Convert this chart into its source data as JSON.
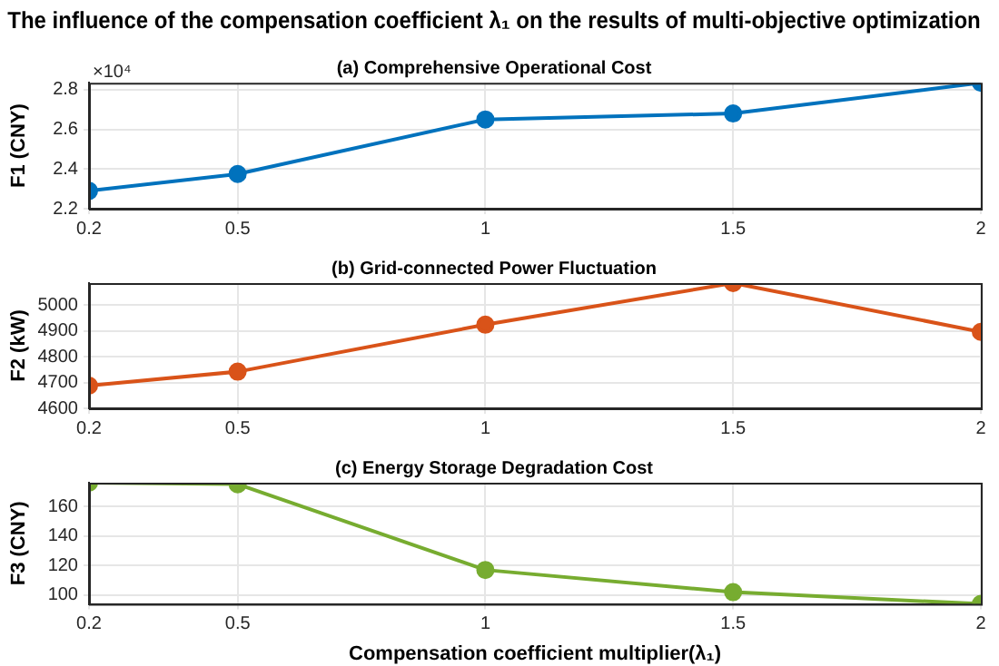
{
  "chart_data": [
    {
      "type": "line",
      "title": "The influence of the compensation coefficient λ₁ on the results of multi-objective optimization",
      "subtitle": "(a) Comprehensive Operational Cost",
      "ylabel": "F1 (CNY)",
      "annotations": [
        "×10⁴"
      ],
      "x": [
        0.2,
        0.5,
        1,
        1.5,
        2
      ],
      "xlim": [
        0.2,
        2
      ],
      "xticks": [
        0.2,
        0.5,
        1,
        1.5,
        2
      ],
      "ylim": [
        2.2,
        2.835
      ],
      "yticks": [
        2.2,
        2.4,
        2.6,
        2.8
      ],
      "series": [
        {
          "color": "#0072bd",
          "values": [
            2.29,
            2.375,
            2.65,
            2.68,
            2.835
          ]
        }
      ],
      "grid": true,
      "marker": "circle",
      "line_style": "solid",
      "legend": false
    },
    {
      "type": "line",
      "subtitle": "(b) Grid-connected Power Fluctuation",
      "ylabel": "F2 (kW)",
      "x": [
        0.2,
        0.5,
        1,
        1.5,
        2
      ],
      "xlim": [
        0.2,
        2
      ],
      "xticks": [
        0.2,
        0.5,
        1,
        1.5,
        2
      ],
      "ylim": [
        4600,
        5085
      ],
      "yticks": [
        4600,
        4700,
        4800,
        4900,
        5000
      ],
      "series": [
        {
          "color": "#d95319",
          "values": [
            4688,
            4742,
            4924,
            5085,
            4896
          ]
        }
      ],
      "grid": true,
      "marker": "circle",
      "line_style": "solid",
      "legend": false
    },
    {
      "type": "line",
      "subtitle": "(c) Energy Storage Degradation Cost",
      "ylabel": "F3 (CNY)",
      "xlabel": "Compensation coefficient multiplier(λ₁)",
      "x": [
        0.2,
        0.5,
        1,
        1.5,
        2
      ],
      "xlim": [
        0.2,
        2
      ],
      "xticks": [
        0.2,
        0.5,
        1,
        1.5,
        2
      ],
      "ylim": [
        94,
        176
      ],
      "yticks": [
        100,
        120,
        140,
        160
      ],
      "series": [
        {
          "color": "#77ac30",
          "values": [
            176,
            175,
            117,
            102,
            94
          ]
        }
      ],
      "grid": true,
      "marker": "circle",
      "line_style": "solid",
      "legend": false
    }
  ]
}
